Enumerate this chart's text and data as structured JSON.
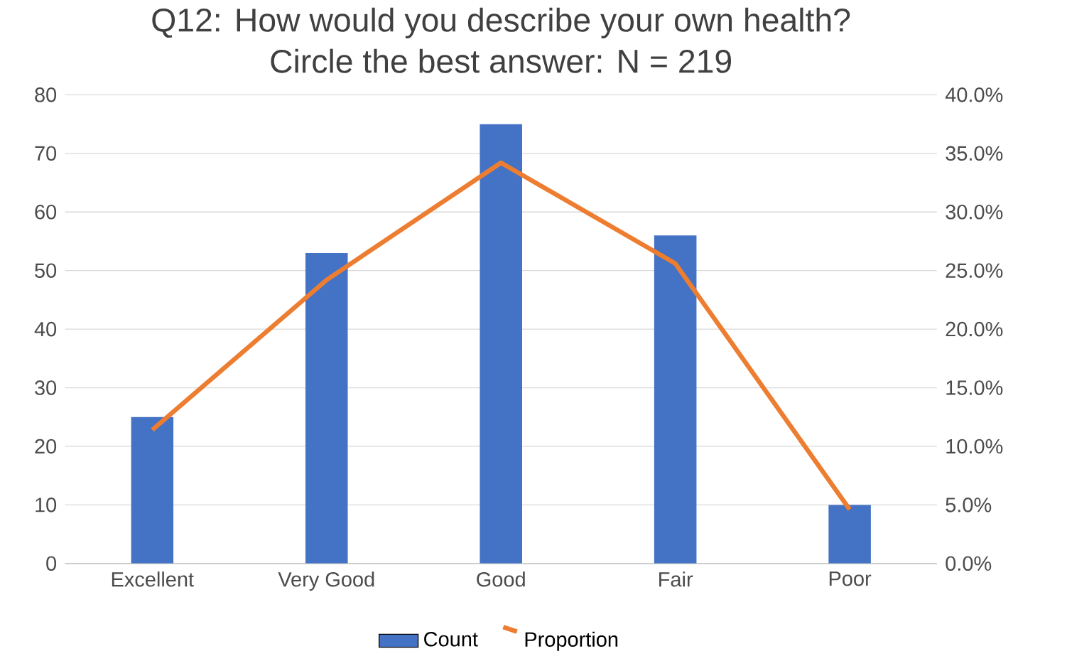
{
  "chart_data": {
    "type": "bar",
    "title": "Q12: How would you describe your own health?\nCircle the best answer:  N = 219",
    "categories": [
      "Excellent",
      "Very Good",
      "Good",
      "Fair",
      "Poor"
    ],
    "series": [
      {
        "name": "Count",
        "color": "#4472c4",
        "values": [
          25,
          53,
          75,
          56,
          10
        ]
      },
      {
        "name": "Proportion",
        "type": "line",
        "axis": "y2",
        "color": "#ed7d31",
        "values": [
          11.4,
          24.2,
          34.2,
          25.6,
          4.6
        ]
      }
    ],
    "ylim": [
      0,
      80
    ],
    "yticks": [
      0,
      10,
      20,
      30,
      40,
      50,
      60,
      70,
      80
    ],
    "y2lim": [
      0,
      40
    ],
    "y2ticks": [
      {
        "value": 0,
        "label": "0.0%"
      },
      {
        "value": 5,
        "label": "5.0%"
      },
      {
        "value": 10,
        "label": "10.0%"
      },
      {
        "value": 15,
        "label": "15.0%"
      },
      {
        "value": 20,
        "label": "20.0%"
      },
      {
        "value": 25,
        "label": "25.0%"
      },
      {
        "value": 30,
        "label": "30.0%"
      },
      {
        "value": 35,
        "label": "35.0%"
      },
      {
        "value": 40,
        "label": "40.0%"
      }
    ],
    "grid": "y",
    "legend": "bottom",
    "marker": "none",
    "line_style": "solid"
  }
}
